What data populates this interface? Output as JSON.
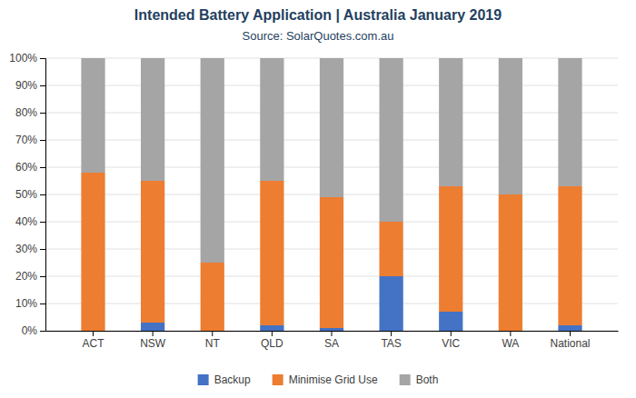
{
  "chart_data": {
    "type": "bar",
    "stacked": true,
    "title": "Intended Battery Application | Australia January 2019",
    "subtitle": "Source: SolarQuotes.com.au",
    "categories": [
      "ACT",
      "NSW",
      "NT",
      "QLD",
      "SA",
      "TAS",
      "VIC",
      "WA",
      "National"
    ],
    "series": [
      {
        "name": "Backup",
        "color": "#4472C4",
        "values": [
          0,
          3,
          0,
          2,
          1,
          20,
          7,
          0,
          2
        ]
      },
      {
        "name": "Minimise Grid Use",
        "color": "#ED7D31",
        "values": [
          58,
          52,
          25,
          53,
          48,
          20,
          46,
          50,
          51
        ]
      },
      {
        "name": "Both",
        "color": "#A5A5A5",
        "values": [
          42,
          45,
          75,
          45,
          51,
          60,
          47,
          50,
          47
        ]
      }
    ],
    "ylim": [
      0,
      100
    ],
    "yticks": [
      {
        "value": 0,
        "label": "0%"
      },
      {
        "value": 10,
        "label": "10%"
      },
      {
        "value": 20,
        "label": "20%"
      },
      {
        "value": 30,
        "label": "30%"
      },
      {
        "value": 40,
        "label": "40%"
      },
      {
        "value": 50,
        "label": "50%"
      },
      {
        "value": 60,
        "label": "60%"
      },
      {
        "value": 70,
        "label": "70%"
      },
      {
        "value": 80,
        "label": "80%"
      },
      {
        "value": 90,
        "label": "90%"
      },
      {
        "value": 100,
        "label": "100%"
      }
    ],
    "grid": true,
    "legend": "bottom"
  }
}
